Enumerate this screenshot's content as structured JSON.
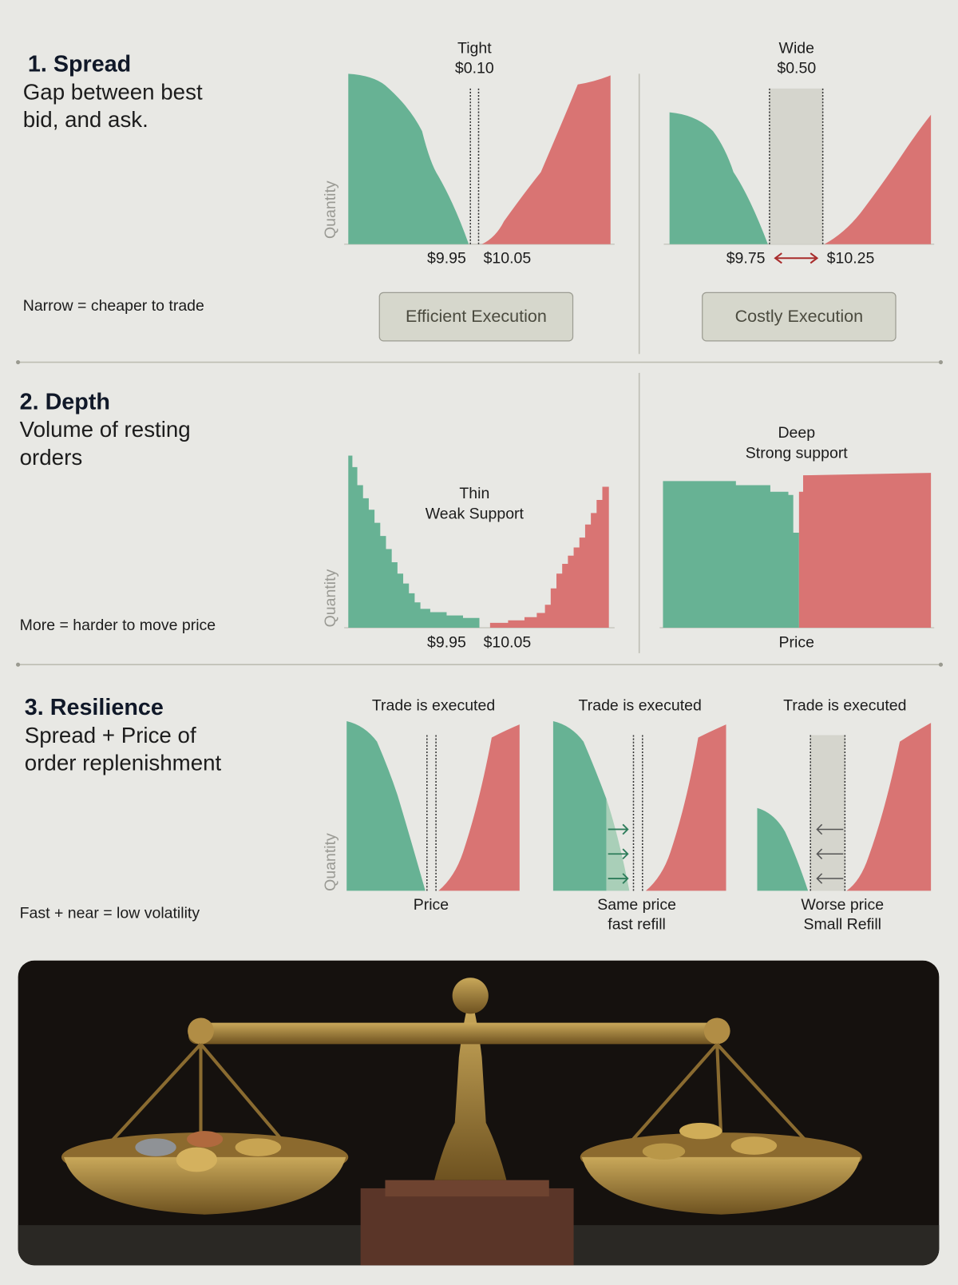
{
  "sections": [
    {
      "title": "1. Spread",
      "description_lines": [
        "Gap between best",
        "bid, and ask."
      ],
      "note": "Narrow = cheaper to trade",
      "axis_label": "Quantity",
      "panels": [
        {
          "header_lines": [
            "Tight",
            "$0.10"
          ],
          "price_labels": [
            "$9.95",
            "$10.05"
          ],
          "button": "Efficient Execution"
        },
        {
          "header_lines": [
            "Wide",
            "$0.50"
          ],
          "price_labels": [
            "$9.75",
            "$10.25"
          ],
          "button": "Costly Execution"
        }
      ]
    },
    {
      "title": "2. Depth",
      "description_lines": [
        "Volume of resting",
        "orders"
      ],
      "note": "More = harder to move price",
      "axis_label": "Quantity",
      "panels": [
        {
          "header_lines": [
            "Thin",
            "Weak Support"
          ],
          "price_labels": [
            "$9.95",
            "$10.05"
          ]
        },
        {
          "header_lines": [
            "Deep",
            "Strong support"
          ],
          "caption_lines": [
            "Price"
          ]
        }
      ]
    },
    {
      "title": "3. Resilience",
      "description_lines": [
        "Spread + Price of",
        "order replenishment"
      ],
      "note": "Fast + near = low volatility",
      "axis_label": "Quantity",
      "panels": [
        {
          "header_lines": [
            "Trade is executed"
          ],
          "caption_lines": [
            "Price"
          ]
        },
        {
          "header_lines": [
            "Trade is executed"
          ],
          "caption_lines": [
            "Same price",
            "fast refill"
          ]
        },
        {
          "header_lines": [
            "Trade is executed"
          ],
          "caption_lines": [
            "Worse price",
            "Small Refill"
          ]
        }
      ]
    }
  ]
}
